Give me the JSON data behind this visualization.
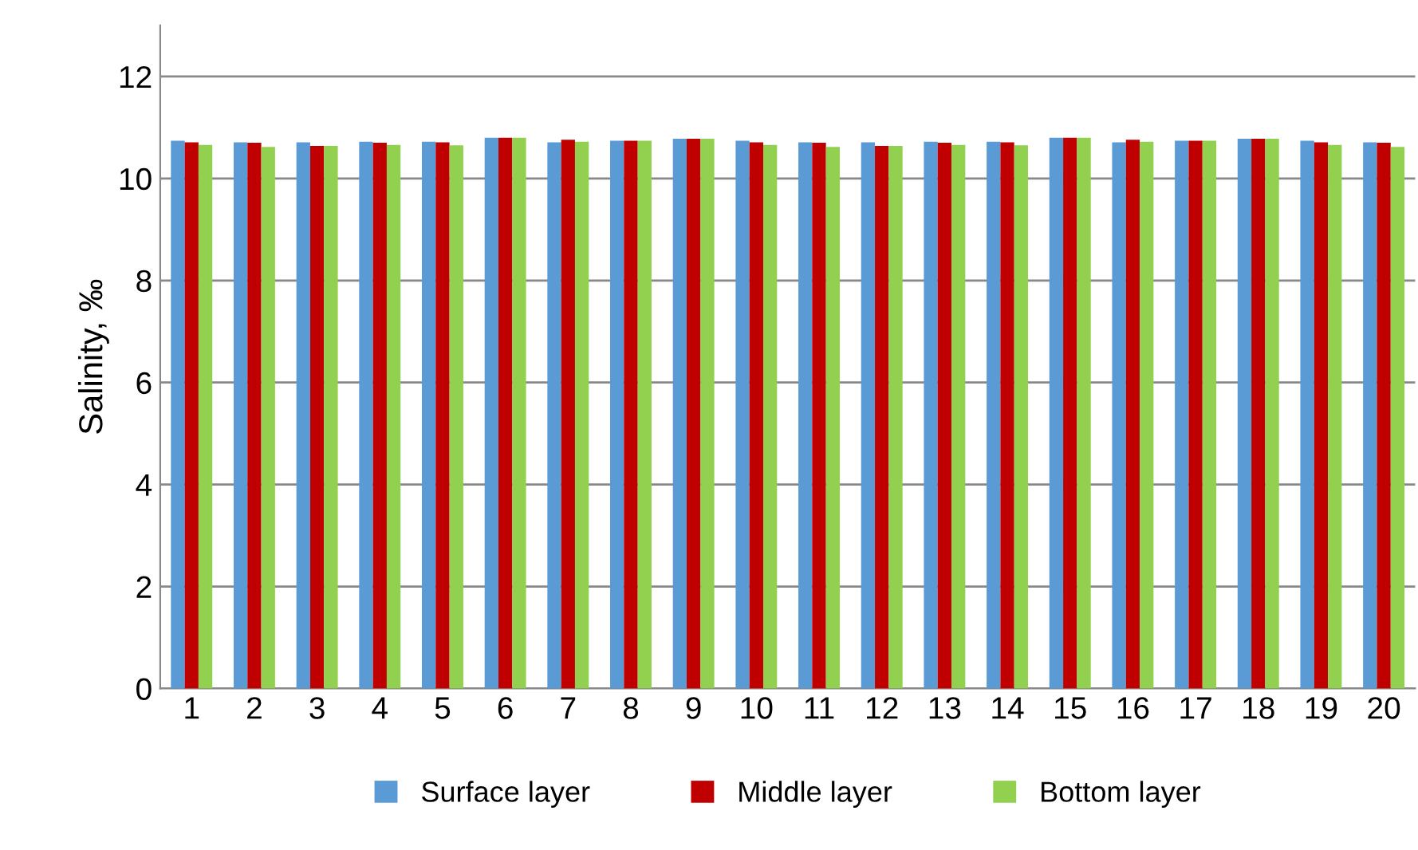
{
  "chart_data": {
    "type": "bar",
    "ylabel": "Salinity, ‰",
    "categories": [
      "1",
      "2",
      "3",
      "4",
      "5",
      "6",
      "7",
      "8",
      "9",
      "10",
      "11",
      "12",
      "13",
      "14",
      "15",
      "16",
      "17",
      "18",
      "19",
      "20"
    ],
    "series": [
      {
        "name": "Surface layer",
        "color": "#5b9bd5",
        "values": [
          10.74,
          10.71,
          10.71,
          10.72,
          10.72,
          10.8,
          10.71,
          10.74,
          10.78,
          10.74,
          10.71,
          10.71,
          10.72,
          10.72,
          10.8,
          10.71,
          10.74,
          10.78,
          10.74,
          10.71
        ]
      },
      {
        "name": "Middle layer",
        "color": "#c00000",
        "values": [
          10.71,
          10.7,
          10.64,
          10.7,
          10.71,
          10.8,
          10.76,
          10.74,
          10.78,
          10.71,
          10.7,
          10.64,
          10.7,
          10.71,
          10.8,
          10.76,
          10.74,
          10.78,
          10.71,
          10.7
        ]
      },
      {
        "name": "Bottom layer",
        "color": "#92d050",
        "values": [
          10.66,
          10.62,
          10.64,
          10.66,
          10.65,
          10.8,
          10.72,
          10.74,
          10.78,
          10.66,
          10.62,
          10.64,
          10.66,
          10.65,
          10.8,
          10.72,
          10.74,
          10.78,
          10.66,
          10.62
        ]
      }
    ],
    "ylim": [
      0,
      13
    ],
    "yticks": [
      0,
      2,
      4,
      6,
      8,
      10,
      12
    ],
    "grid": "y",
    "legend": "bottom"
  }
}
